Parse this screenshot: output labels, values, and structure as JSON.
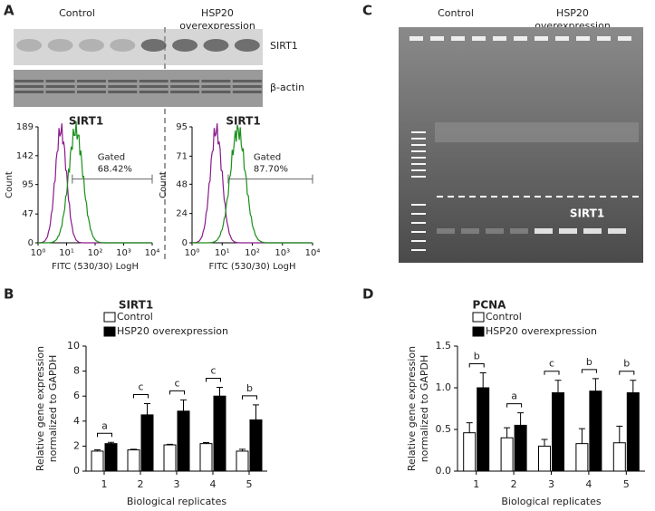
{
  "panels": {
    "A": {
      "label": "A",
      "groups": [
        [
          "Control"
        ],
        [
          "HSP20",
          "overexpression"
        ]
      ],
      "bands": [
        "SIRT1",
        "β-actin"
      ]
    },
    "C": {
      "label": "C",
      "groups": [
        [
          "Control"
        ],
        [
          "HSP20",
          "overexpression"
        ]
      ],
      "band": "SIRT1"
    }
  },
  "chart_data": [
    {
      "type": "flow",
      "title": "SIRT1",
      "ylabel": "Count",
      "xlabel": "FITC (530/30) LogH",
      "xlim": [
        0,
        4
      ],
      "xticks": [
        {
          "value": 0,
          "label": "10⁰"
        },
        {
          "value": 1,
          "label": "10¹"
        },
        {
          "value": 2,
          "label": "10²"
        },
        {
          "value": 3,
          "label": "10³"
        },
        {
          "value": 4,
          "label": "10⁴"
        }
      ],
      "ylim": [
        0,
        189
      ],
      "yticks": [
        0,
        47,
        95,
        142,
        189
      ],
      "annotation": [
        "Gated",
        "68.42%"
      ]
    },
    {
      "type": "flow",
      "title": "SIRT1",
      "ylabel": "Count",
      "xlabel": "FITC (530/30) LogH",
      "xlim": [
        0,
        4
      ],
      "xticks": [
        {
          "value": 0,
          "label": "10⁰"
        },
        {
          "value": 1,
          "label": "10¹"
        },
        {
          "value": 2,
          "label": "10²"
        },
        {
          "value": 3,
          "label": "10³"
        },
        {
          "value": 4,
          "label": "10⁴"
        }
      ],
      "ylim": [
        0,
        95
      ],
      "yticks": [
        0,
        24,
        48,
        71,
        95
      ],
      "annotation": [
        "Gated",
        "87.70%"
      ]
    },
    {
      "type": "bar",
      "panel": "B",
      "title": "SIRT1",
      "ylabel": [
        "Relative gene expression",
        "normalized to GAPDH"
      ],
      "xlabel": "Biological replicates",
      "categories": [
        "1",
        "2",
        "3",
        "4",
        "5"
      ],
      "ylim": [
        0,
        10
      ],
      "yticks": [
        0,
        2,
        4,
        6,
        8,
        10
      ],
      "series": [
        {
          "name": "Control",
          "color": "#ffffff",
          "values": [
            1.6,
            1.7,
            2.1,
            2.2,
            1.6
          ],
          "errors": [
            0.1,
            0.05,
            0.05,
            0.08,
            0.15
          ]
        },
        {
          "name": "HSP20 overexpression",
          "color": "#000000",
          "values": [
            2.2,
            4.5,
            4.8,
            6.0,
            4.1
          ],
          "errors": [
            0.1,
            0.9,
            0.9,
            0.7,
            1.2
          ]
        }
      ],
      "significance": [
        "a",
        "c",
        "c",
        "c",
        "b"
      ]
    },
    {
      "type": "bar",
      "panel": "D",
      "title": "PCNA",
      "ylabel": [
        "Relative gene expression",
        "normalized to GAPDH"
      ],
      "xlabel": "Biological replicates",
      "categories": [
        "1",
        "2",
        "3",
        "4",
        "5"
      ],
      "ylim": [
        0,
        1.5
      ],
      "yticks": [
        {
          "value": 0,
          "label": "0.0"
        },
        0.5,
        {
          "value": 1,
          "label": "1.0"
        },
        1.5
      ],
      "series": [
        {
          "name": "Control",
          "color": "#ffffff",
          "values": [
            0.46,
            0.4,
            0.3,
            0.33,
            0.34
          ],
          "errors": [
            0.12,
            0.12,
            0.08,
            0.18,
            0.2
          ]
        },
        {
          "name": "HSP20 overexpression",
          "color": "#000000",
          "values": [
            1.0,
            0.55,
            0.94,
            0.96,
            0.94
          ],
          "errors": [
            0.18,
            0.15,
            0.15,
            0.15,
            0.15
          ]
        }
      ],
      "significance": [
        "b",
        "a",
        "c",
        "b",
        "b"
      ]
    }
  ]
}
